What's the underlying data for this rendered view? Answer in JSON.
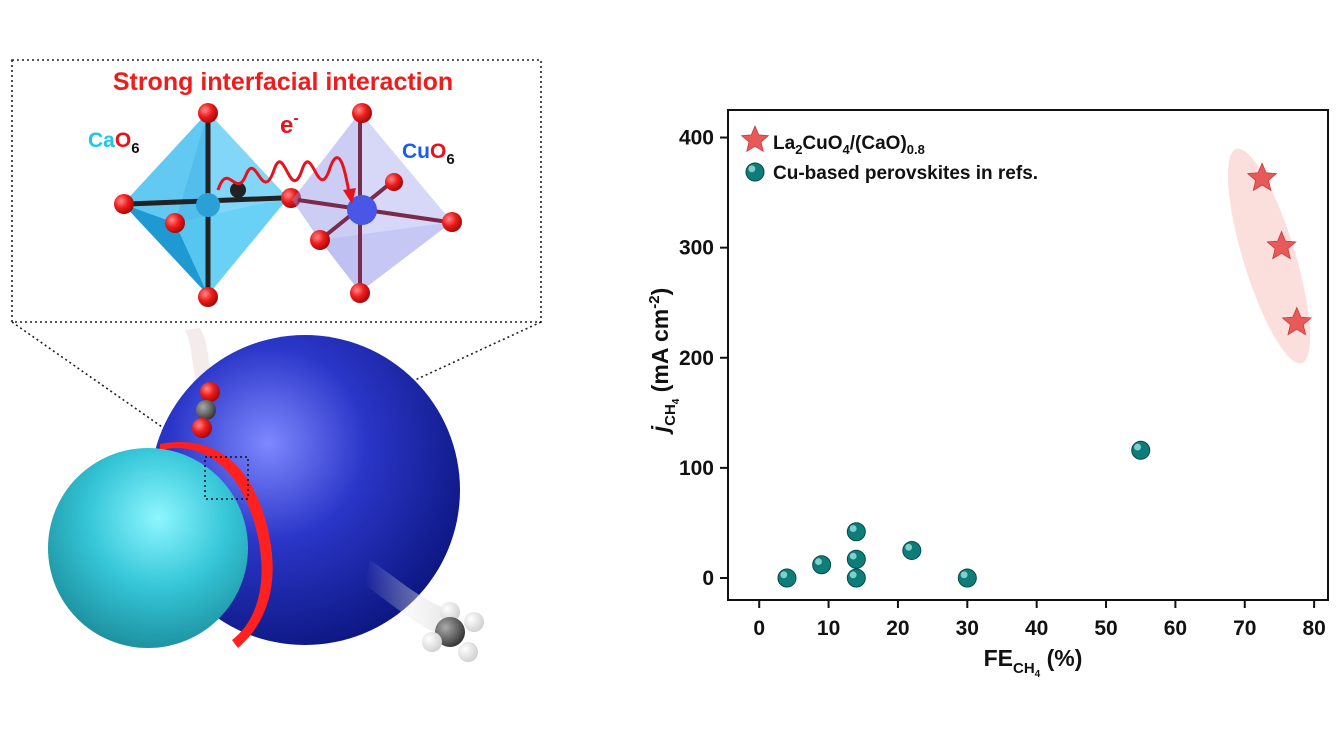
{
  "illustration": {
    "title": "Strong interfacial interaction",
    "electron": "e",
    "electron_sup": "-",
    "cao6": {
      "part1": "Ca",
      "part2": "O",
      "sub": "6"
    },
    "cuo6": {
      "part1": "Cu",
      "part2": "O",
      "sub": "6"
    },
    "colors": {
      "title": "#ee1c1c",
      "cao_text": "#1ec8e8",
      "cu_text": "#1a5cf0",
      "oxygen": "#e8121e",
      "cao_sphere": "#33c8d8",
      "cuo_sphere": "#1c2aa8",
      "interface": "#ff2020"
    }
  },
  "chart_data": {
    "type": "scatter",
    "xlabel": {
      "main": "FE",
      "sub": "CH",
      "subsub": "4",
      "tail": " (%)"
    },
    "ylabel": {
      "j": "j",
      "sub": "CH",
      "subsub": "4",
      "tail": " (mA cm",
      "sup": "-2",
      "close": ")"
    },
    "xlim": [
      -4.5,
      82
    ],
    "ylim": [
      -20,
      425
    ],
    "xticks": [
      0,
      10,
      20,
      30,
      40,
      50,
      60,
      70,
      80
    ],
    "yticks": [
      0,
      100,
      200,
      300,
      400
    ],
    "xtick_labels": [
      "0",
      "10",
      "20",
      "30",
      "40",
      "50",
      "60",
      "70",
      "80"
    ],
    "ytick_labels": [
      "0",
      "100",
      "200",
      "300",
      "400"
    ],
    "legend_position": "top-left",
    "series": [
      {
        "name": "La2CuO4/(CaO)0.8",
        "legend": {
          "a": "La",
          "b": "2",
          "c": "CuO",
          "d": "4",
          "e": "/(CaO)",
          "f": "0.8"
        },
        "marker": "star",
        "color": "#e85a5a",
        "x": [
          72.5,
          75.3,
          77.5
        ],
        "y": [
          363,
          301,
          232
        ]
      },
      {
        "name": "Cu-based perovskites in refs.",
        "marker": "sphere",
        "color": "#0e7d7a",
        "x": [
          4,
          9,
          14,
          14,
          14,
          22,
          30,
          55
        ],
        "y": [
          0,
          12,
          42,
          17,
          0,
          25,
          0,
          116
        ]
      }
    ]
  }
}
